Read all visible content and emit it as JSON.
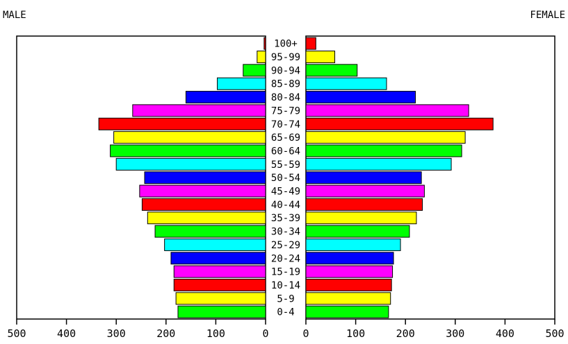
{
  "chart_data": {
    "type": "bar",
    "male_label": "MALE",
    "female_label": "FEMALE",
    "categories": [
      "100+",
      "95-99",
      "90-94",
      "85-89",
      "80-84",
      "75-79",
      "70-74",
      "65-69",
      "60-64",
      "55-59",
      "50-54",
      "45-49",
      "40-44",
      "35-39",
      "30-34",
      "25-29",
      "20-24",
      "15-19",
      "10-14",
      "5-9",
      "0-4"
    ],
    "series": [
      {
        "name": "MALE",
        "values": [
          3,
          17,
          45,
          97,
          160,
          267,
          335,
          305,
          312,
          300,
          243,
          253,
          248,
          237,
          222,
          203,
          190,
          184,
          184,
          180,
          176
        ]
      },
      {
        "name": "FEMALE",
        "values": [
          20,
          58,
          103,
          162,
          220,
          327,
          376,
          320,
          313,
          292,
          232,
          238,
          234,
          222,
          208,
          190,
          176,
          174,
          172,
          170,
          166
        ]
      }
    ],
    "bar_colors": [
      "#ff0000",
      "#ffff00",
      "#00ff00",
      "#00ffff",
      "#0000ff",
      "#ff00ff",
      "#ff0000",
      "#ffff00",
      "#00ff00",
      "#00ffff",
      "#0000ff",
      "#ff00ff",
      "#ff0000",
      "#ffff00",
      "#00ff00",
      "#00ffff",
      "#0000ff",
      "#ff00ff",
      "#ff0000",
      "#ffff00",
      "#00ff00"
    ],
    "xlim": [
      0,
      500
    ],
    "male_ticks": [
      "500",
      "400",
      "300",
      "200",
      "100",
      "0"
    ],
    "female_ticks": [
      "0",
      "100",
      "200",
      "300",
      "400",
      "500"
    ],
    "grid": false,
    "legend": "none"
  }
}
